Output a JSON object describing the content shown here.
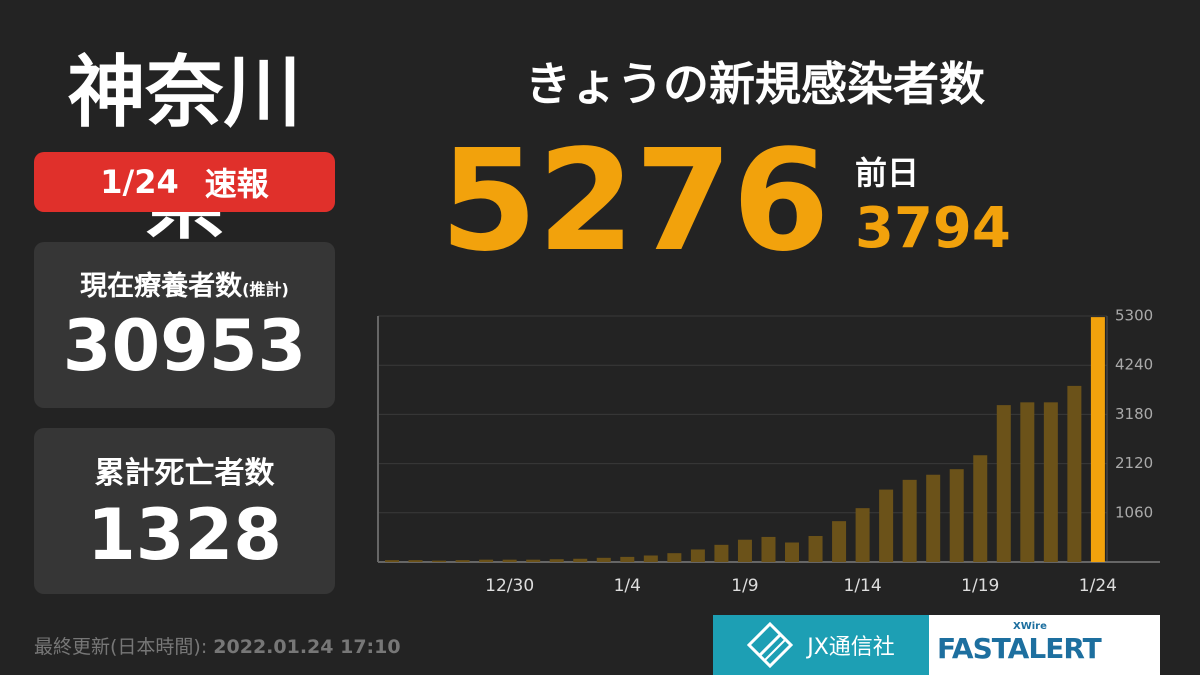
{
  "region": "神奈川県",
  "badge": {
    "date": "1/24",
    "label": "速報"
  },
  "recovering": {
    "label": "現在療養者数",
    "note": "(推計)",
    "value": 30953
  },
  "deaths": {
    "label": "累計死亡者数",
    "value": 1328
  },
  "headline": "きょうの新規感染者数",
  "today_count": 5276,
  "previous": {
    "label": "前日",
    "value": 3794
  },
  "footer": {
    "label": "最終更新(日本時間):",
    "timestamp": "2022.01.24 17:10"
  },
  "logos": {
    "jx": "JX通信社",
    "xwire": "XWire",
    "fastalert": "FASTALERT"
  },
  "chart_data": {
    "type": "bar",
    "categories": [
      null,
      null,
      null,
      null,
      null,
      "12/30",
      null,
      null,
      null,
      null,
      "1/4",
      null,
      null,
      null,
      null,
      "1/9",
      null,
      null,
      null,
      null,
      "1/14",
      null,
      null,
      null,
      null,
      "1/19",
      null,
      null,
      null,
      null,
      "1/24"
    ],
    "values": [
      40,
      40,
      30,
      40,
      50,
      50,
      50,
      60,
      70,
      90,
      110,
      140,
      190,
      270,
      370,
      480,
      540,
      420,
      560,
      880,
      1160,
      1560,
      1770,
      1880,
      2000,
      2300,
      3380,
      3440,
      3440,
      3794,
      5276
    ],
    "color": "#6b5219",
    "highlight_color": "#f2a20c",
    "ylim": [
      0,
      5300
    ],
    "yticks": [
      1060,
      2120,
      3180,
      4240,
      5300
    ],
    "grid": true
  }
}
